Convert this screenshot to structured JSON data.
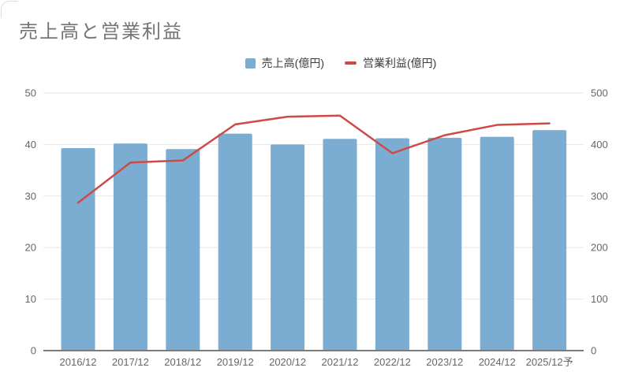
{
  "title": "売上高と営業利益",
  "legend": {
    "items": [
      {
        "label": "売上高(億円)",
        "swatch": "bar-swatch"
      },
      {
        "label": "営業利益(億円)",
        "swatch": "line-swatch"
      }
    ]
  },
  "colors": {
    "bar": "#7badd2",
    "line": "#cd4a45",
    "title": "#757575",
    "axis_label": "#666666",
    "gridline": "#e6e6e6",
    "baseline": "#7a7a7a"
  },
  "chart_data": {
    "type": "combo",
    "title": "売上高と営業利益",
    "categories": [
      "2016/12",
      "2017/12",
      "2018/12",
      "2019/12",
      "2020/12",
      "2021/12",
      "2022/12",
      "2023/12",
      "2024/12",
      "2025/12予"
    ],
    "series": [
      {
        "name": "売上高(億円)",
        "type": "bar",
        "axis": "right",
        "values": [
          393,
          402,
          391,
          421,
          400,
          411,
          412,
          413,
          415,
          428
        ]
      },
      {
        "name": "営業利益(億円)",
        "type": "line",
        "axis": "left",
        "values": [
          28.7,
          36.5,
          36.9,
          43.9,
          45.4,
          45.6,
          38.3,
          41.8,
          43.8,
          44.1
        ]
      }
    ],
    "left_axis": {
      "ylim": [
        0,
        50
      ],
      "ticks": [
        0,
        10,
        20,
        30,
        40,
        50
      ]
    },
    "right_axis": {
      "ylim": [
        0,
        500
      ],
      "ticks": [
        0,
        100,
        200,
        300,
        400,
        500
      ]
    },
    "grid": true,
    "legend_position": "top-center"
  }
}
